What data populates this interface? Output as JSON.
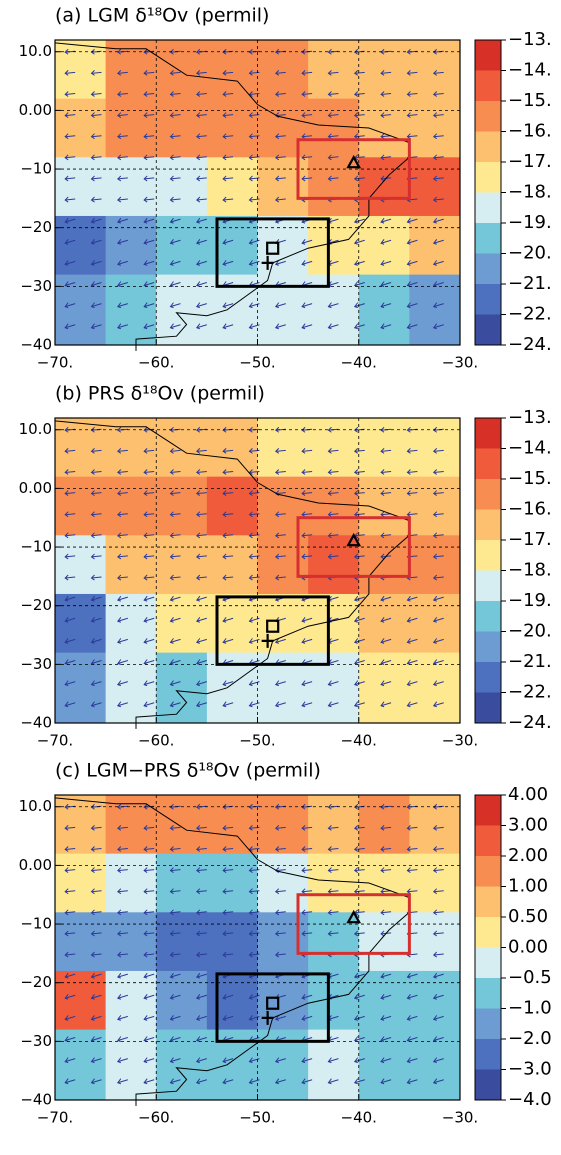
{
  "chart_data": [
    {
      "type": "contour",
      "title": "(a) LGM δ¹⁸Ov (permil)",
      "xlim": [
        -70,
        -30
      ],
      "ylim": [
        -40,
        12
      ],
      "xticks": [
        {
          "value": -70,
          "label": "−70."
        },
        {
          "value": -60,
          "label": "−60."
        },
        {
          "value": -50,
          "label": "−50."
        },
        {
          "value": -40,
          "label": "−40."
        },
        {
          "value": -30,
          "label": "−30."
        }
      ],
      "yticks": [
        {
          "value": 10,
          "label": "10.0"
        },
        {
          "value": 0,
          "label": "0.00"
        },
        {
          "value": -10,
          "label": "−10"
        },
        {
          "value": -20,
          "label": "−20"
        },
        {
          "value": -30,
          "label": "−30"
        },
        {
          "value": -40,
          "label": "−40"
        }
      ],
      "grid": true,
      "levels": [
        {
          "value": -13,
          "label": "−13."
        },
        {
          "value": -14,
          "label": "−14."
        },
        {
          "value": -15,
          "label": "−15."
        },
        {
          "value": -16,
          "label": "−16."
        },
        {
          "value": -17,
          "label": "−17."
        },
        {
          "value": -18,
          "label": "−18."
        },
        {
          "value": -19,
          "label": "−19."
        },
        {
          "value": -20,
          "label": "−20."
        },
        {
          "value": -21,
          "label": "−21."
        },
        {
          "value": -22,
          "label": "−22."
        },
        {
          "value": -24,
          "label": "−24."
        }
      ],
      "colors": [
        "#d73027",
        "#ef5b3b",
        "#f88d52",
        "#fdc06e",
        "#fee991",
        "#d6eef2",
        "#74c6d9",
        "#6d9cd3",
        "#4d70bf",
        "#3a4c9e"
      ],
      "field_x": [
        -67.5,
        -62.5,
        -57.5,
        -52.5,
        -47.5,
        -42.5,
        -37.5,
        -32.5
      ],
      "field_y": [
        7,
        -3,
        -13,
        -23,
        -33
      ],
      "field_values": [
        [
          -17.5,
          -15.5,
          -15.5,
          -15.5,
          -15.5,
          -16.5,
          -16.5,
          -16.5
        ],
        [
          -16.5,
          -15.5,
          -15.5,
          -15.5,
          -15.5,
          -15.5,
          -16.5,
          -16.5
        ],
        [
          -18.5,
          -18.5,
          -18.5,
          -17.5,
          -16.5,
          -15.5,
          -14.5,
          -14.5
        ],
        [
          -21.5,
          -20.5,
          -19.5,
          -19.5,
          -18.5,
          -17.5,
          -17.5,
          -16.5
        ],
        [
          -20.5,
          -19.5,
          -18.5,
          -18.5,
          -18.5,
          -18.5,
          -19.5,
          -20.5
        ]
      ],
      "boxes": [
        {
          "color": "#d62f2f",
          "xlim": [
            -46,
            -35
          ],
          "ylim": [
            -15,
            -5
          ]
        },
        {
          "color": "#000000",
          "xlim": [
            -54,
            -43
          ],
          "ylim": [
            -30,
            -18.5
          ]
        }
      ],
      "sites": [
        {
          "marker": "triangle",
          "x": -40.5,
          "y": -9
        },
        {
          "marker": "square",
          "x": -48.5,
          "y": -23.5
        },
        {
          "marker": "plus",
          "x": -49,
          "y": -26
        }
      ]
    },
    {
      "type": "contour",
      "title": "(b) PRS δ¹⁸Ov (permil)",
      "xlim": [
        -70,
        -30
      ],
      "ylim": [
        -40,
        12
      ],
      "xticks": [
        {
          "value": -70,
          "label": "−70."
        },
        {
          "value": -60,
          "label": "−60."
        },
        {
          "value": -50,
          "label": "−50."
        },
        {
          "value": -40,
          "label": "−40."
        },
        {
          "value": -30,
          "label": "−30."
        }
      ],
      "yticks": [
        {
          "value": 10,
          "label": "10.0"
        },
        {
          "value": 0,
          "label": "0.00"
        },
        {
          "value": -10,
          "label": "−10"
        },
        {
          "value": -20,
          "label": "−20"
        },
        {
          "value": -30,
          "label": "−30"
        },
        {
          "value": -40,
          "label": "−40"
        }
      ],
      "grid": true,
      "levels": [
        {
          "value": -13,
          "label": "−13."
        },
        {
          "value": -14,
          "label": "−14."
        },
        {
          "value": -15,
          "label": "−15."
        },
        {
          "value": -16,
          "label": "−16."
        },
        {
          "value": -17,
          "label": "−17."
        },
        {
          "value": -18,
          "label": "−18."
        },
        {
          "value": -19,
          "label": "−19."
        },
        {
          "value": -20,
          "label": "−20."
        },
        {
          "value": -21,
          "label": "−21."
        },
        {
          "value": -22,
          "label": "−22."
        },
        {
          "value": -24,
          "label": "−24."
        }
      ],
      "colors": [
        "#d73027",
        "#ef5b3b",
        "#f88d52",
        "#fdc06e",
        "#fee991",
        "#d6eef2",
        "#74c6d9",
        "#6d9cd3",
        "#4d70bf",
        "#3a4c9e"
      ],
      "field_x": [
        -67.5,
        -62.5,
        -57.5,
        -52.5,
        -47.5,
        -42.5,
        -37.5,
        -32.5
      ],
      "field_y": [
        7,
        -3,
        -13,
        -23,
        -33
      ],
      "field_values": [
        [
          -16.5,
          -16.5,
          -16.5,
          -16.5,
          -17.5,
          -17.5,
          -17.5,
          -17.5
        ],
        [
          -15.5,
          -15.5,
          -15.5,
          -14.5,
          -15.5,
          -15.5,
          -16.5,
          -16.5
        ],
        [
          -18.5,
          -16.5,
          -16.5,
          -16.5,
          -15.5,
          -14.5,
          -15.5,
          -15.5
        ],
        [
          -21.5,
          -18.5,
          -17.5,
          -17.5,
          -17.5,
          -17.5,
          -16.5,
          -16.5
        ],
        [
          -20.5,
          -18.5,
          -19.5,
          -18.5,
          -18.5,
          -18.5,
          -17.5,
          -17.5
        ]
      ],
      "boxes": [
        {
          "color": "#d62f2f",
          "xlim": [
            -46,
            -35
          ],
          "ylim": [
            -15,
            -5
          ]
        },
        {
          "color": "#000000",
          "xlim": [
            -54,
            -43
          ],
          "ylim": [
            -30,
            -18.5
          ]
        }
      ],
      "sites": [
        {
          "marker": "triangle",
          "x": -40.5,
          "y": -9
        },
        {
          "marker": "square",
          "x": -48.5,
          "y": -23.5
        },
        {
          "marker": "plus",
          "x": -49,
          "y": -26
        }
      ]
    },
    {
      "type": "contour",
      "title": "(c) LGM−PRS δ¹⁸Ov (permil)",
      "xlim": [
        -70,
        -30
      ],
      "ylim": [
        -40,
        12
      ],
      "xticks": [
        {
          "value": -70,
          "label": "−70."
        },
        {
          "value": -60,
          "label": "−60."
        },
        {
          "value": -50,
          "label": "−50."
        },
        {
          "value": -40,
          "label": "−40."
        },
        {
          "value": -30,
          "label": "−30."
        }
      ],
      "yticks": [
        {
          "value": 10,
          "label": "10.0"
        },
        {
          "value": 0,
          "label": "0.00"
        },
        {
          "value": -10,
          "label": "−10"
        },
        {
          "value": -20,
          "label": "−20"
        },
        {
          "value": -30,
          "label": "−30"
        },
        {
          "value": -40,
          "label": "−40"
        }
      ],
      "grid": true,
      "levels": [
        {
          "value": 4,
          "label": "4.00"
        },
        {
          "value": 3,
          "label": "3.00"
        },
        {
          "value": 2,
          "label": "2.00"
        },
        {
          "value": 1,
          "label": "1.00"
        },
        {
          "value": 0.5,
          "label": "0.50"
        },
        {
          "value": 0,
          "label": "0.00"
        },
        {
          "value": -0.5,
          "label": "−0.5"
        },
        {
          "value": -1,
          "label": "−1.0"
        },
        {
          "value": -2,
          "label": "−2.0"
        },
        {
          "value": -3,
          "label": "−3.0"
        },
        {
          "value": -4,
          "label": "−4.0"
        }
      ],
      "colors": [
        "#d73027",
        "#ef5b3b",
        "#f88d52",
        "#fdc06e",
        "#fee991",
        "#d6eef2",
        "#74c6d9",
        "#6d9cd3",
        "#4d70bf",
        "#3a4c9e"
      ],
      "field_x": [
        -67.5,
        -62.5,
        -57.5,
        -52.5,
        -47.5,
        -42.5,
        -37.5,
        -32.5
      ],
      "field_y": [
        7,
        -3,
        -13,
        -23,
        -33
      ],
      "field_values": [
        [
          0.75,
          1.5,
          1.5,
          1.5,
          1.5,
          0.75,
          1.5,
          0.75
        ],
        [
          0.25,
          -0.25,
          -0.75,
          -0.75,
          -0.25,
          0.25,
          0.25,
          0.25
        ],
        [
          -1.5,
          -1.5,
          -2.5,
          -2.5,
          -1.5,
          -0.75,
          -0.25,
          -0.25
        ],
        [
          2.5,
          -0.25,
          -1.5,
          -2.5,
          -1.5,
          -0.75,
          -0.75,
          -0.75
        ],
        [
          -0.75,
          -0.25,
          -0.75,
          -0.75,
          -0.75,
          -0.25,
          -0.75,
          -0.75
        ]
      ],
      "boxes": [
        {
          "color": "#d62f2f",
          "xlim": [
            -46,
            -35
          ],
          "ylim": [
            -15,
            -5
          ]
        },
        {
          "color": "#000000",
          "xlim": [
            -54,
            -43
          ],
          "ylim": [
            -30,
            -18.5
          ]
        }
      ],
      "sites": [
        {
          "marker": "triangle",
          "x": -40.5,
          "y": -9
        },
        {
          "marker": "square",
          "x": -48.5,
          "y": -23.5
        },
        {
          "marker": "plus",
          "x": -49,
          "y": -26
        }
      ]
    }
  ]
}
